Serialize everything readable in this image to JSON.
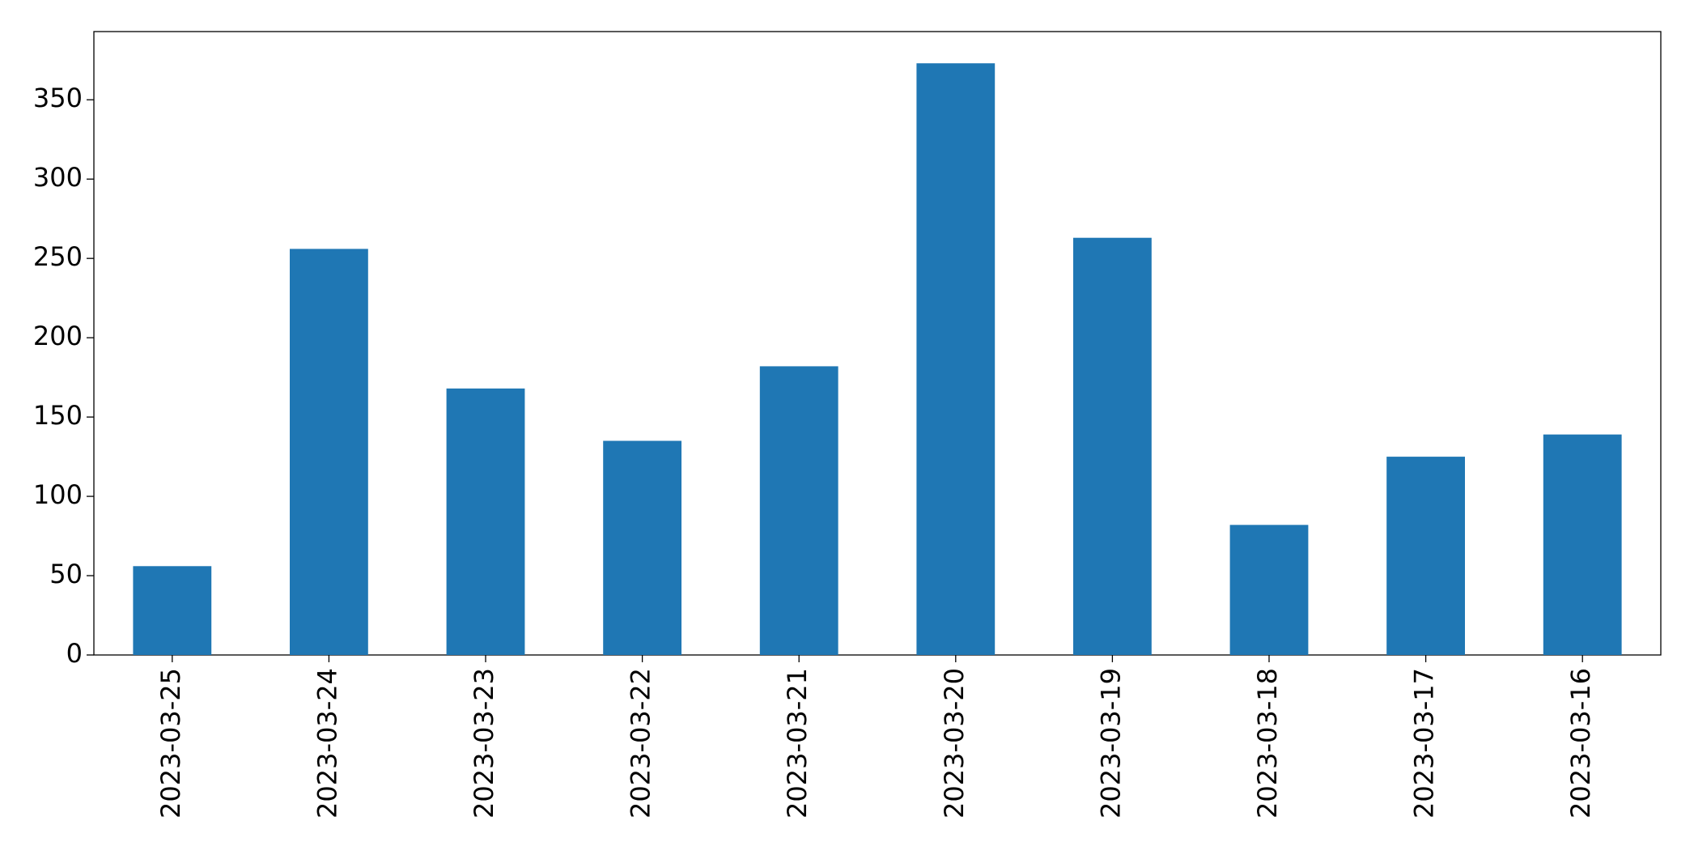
{
  "chart_data": {
    "type": "bar",
    "categories": [
      "2023-03-25",
      "2023-03-24",
      "2023-03-23",
      "2023-03-22",
      "2023-03-21",
      "2023-03-20",
      "2023-03-19",
      "2023-03-18",
      "2023-03-17",
      "2023-03-16"
    ],
    "values": [
      56,
      256,
      168,
      135,
      182,
      373,
      263,
      82,
      125,
      139
    ],
    "color": "#1f77b4",
    "ylim": [
      0,
      393
    ],
    "yticks": [
      0,
      50,
      100,
      150,
      200,
      250,
      300,
      350
    ],
    "grid": false
  }
}
